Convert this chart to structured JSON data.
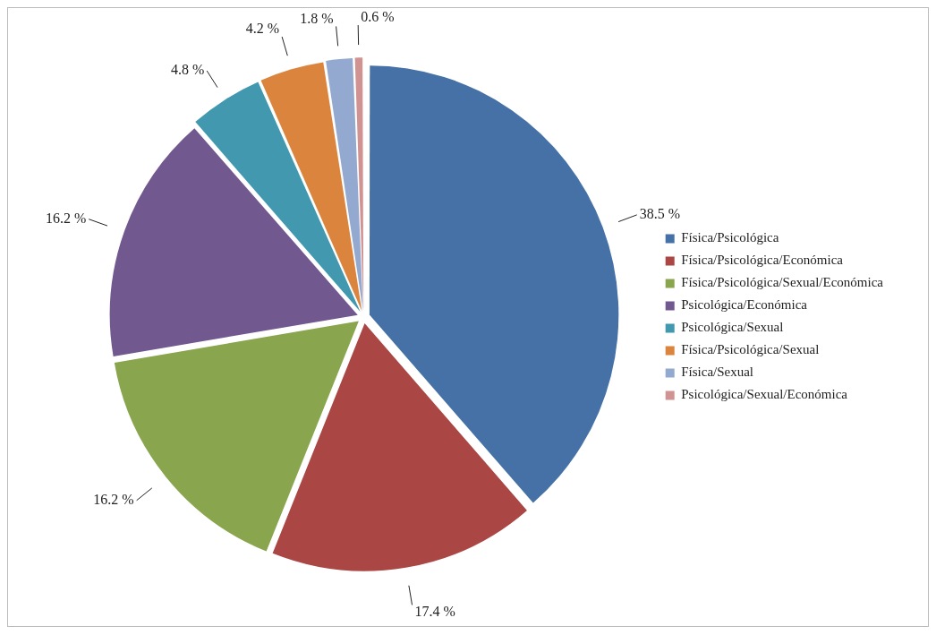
{
  "chart_data": {
    "type": "pie",
    "categories": [
      "Física/Psicológica",
      "Física/Psicológica/Económica",
      "Física/Psicológica/Sexual/Económica",
      "Psicológica/Económica",
      "Psicológica/Sexual",
      "Física/Psicológica/Sexual",
      "Física/Sexual",
      "Psicológica/Sexual/Económica"
    ],
    "values": [
      38.5,
      17.4,
      16.2,
      16.2,
      4.8,
      4.2,
      1.8,
      0.6
    ],
    "value_labels": [
      "38.5 %",
      "17.4 %",
      "16.2 %",
      "16.2 %",
      "4.8 %",
      "4.2 %",
      "1.8 %",
      "0.6 %"
    ],
    "colors": [
      "#4571a7",
      "#aa4643",
      "#89a54e",
      "#71588f",
      "#4198af",
      "#db843d",
      "#93a9cf",
      "#d19392"
    ],
    "legend": "right"
  }
}
